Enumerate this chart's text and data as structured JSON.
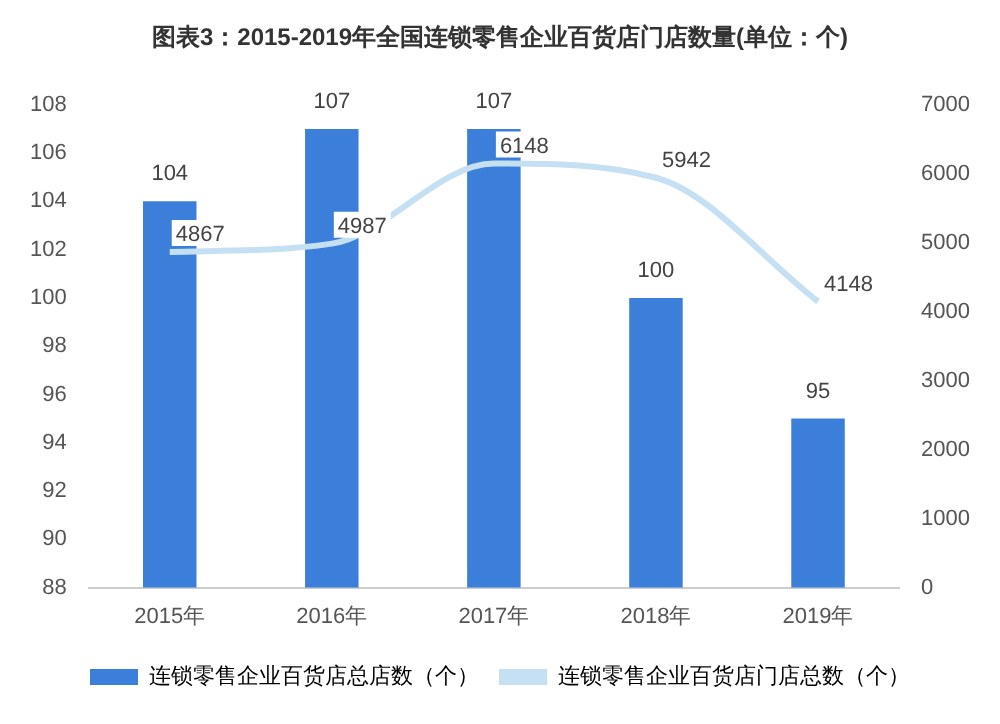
{
  "chart_data": {
    "type": "bar",
    "title": "图表3：2015-2019年全国连锁零售企业百货店门店数量(单位：个)",
    "categories": [
      "2015年",
      "2016年",
      "2017年",
      "2018年",
      "2019年"
    ],
    "series": [
      {
        "name": "连锁零售企业百货店总店数（个）",
        "color": "#3b7fdb",
        "values": [
          104,
          107,
          107,
          100,
          95
        ]
      },
      {
        "name": "连锁零售企业百货店门店总数（个）",
        "type": "line",
        "axis": "y2",
        "color": "#c5dff3",
        "values": [
          4867,
          4987,
          6148,
          5942,
          4148
        ]
      }
    ],
    "ylim": [
      88,
      108
    ],
    "yticks": [
      88,
      90,
      92,
      94,
      96,
      98,
      100,
      102,
      104,
      106,
      108
    ],
    "y2lim": [
      0,
      7000
    ],
    "y2ticks": [
      0,
      1000,
      2000,
      3000,
      4000,
      5000,
      6000,
      7000
    ],
    "data_labels": true,
    "grid": false,
    "legend": "bottom",
    "marker": "none"
  }
}
